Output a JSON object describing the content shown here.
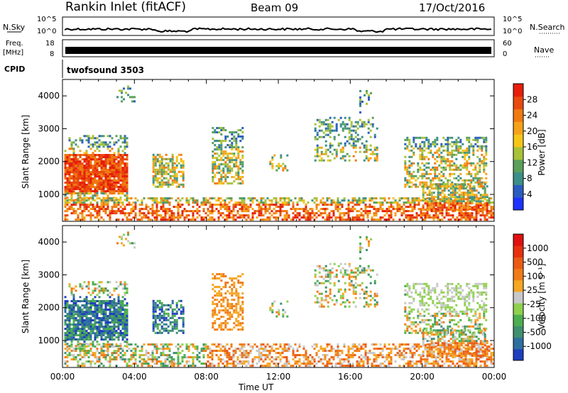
{
  "header": {
    "station": "Rankin Inlet (fitACF)",
    "beam": "Beam 09",
    "date": "17/Oct/2016"
  },
  "strip_panels": {
    "nsky": {
      "label": "N.Sky",
      "left_ticks": [
        "10^5",
        "10^0"
      ],
      "right_ticks": [
        "10^5",
        "10^0"
      ],
      "right_label": "N.Search"
    },
    "freq": {
      "label_line1": "Freq.",
      "label_line2": "[MHz]",
      "left_ticks": [
        "18",
        "8"
      ],
      "right_ticks": [
        "60",
        "0"
      ],
      "right_label": "Nave"
    },
    "cpid": {
      "label": "CPID",
      "value": "twofsound 3503"
    }
  },
  "chart_data": [
    {
      "type": "heatmap",
      "name": "power",
      "ylabel": "Slant Range [km]",
      "xlabel": "",
      "x_ticks": [
        "00:00",
        "04:00",
        "08:00",
        "12:00",
        "16:00",
        "20:00",
        "00:00"
      ],
      "xlim": [
        0,
        24
      ],
      "y_ticks": [
        1000,
        2000,
        3000,
        4000
      ],
      "ylim": [
        180,
        4500
      ],
      "colorbar": {
        "label": "Power [dB]",
        "ticks": [
          "4",
          "8",
          "12",
          "16",
          "20",
          "24",
          "28"
        ],
        "colors": [
          "#1e32ff",
          "#2a5dbf",
          "#3c8f88",
          "#5aa05a",
          "#a8c23a",
          "#f5c518",
          "#f5a21a",
          "#f07a10",
          "#e84a10",
          "#e61e0a"
        ]
      }
    },
    {
      "type": "heatmap",
      "name": "velocity",
      "ylabel": "Slant Range [km]",
      "xlabel": "Time UT",
      "x_ticks": [
        "00:00",
        "04:00",
        "08:00",
        "12:00",
        "16:00",
        "20:00",
        "00:00"
      ],
      "xlim": [
        0,
        24
      ],
      "y_ticks": [
        1000,
        2000,
        3000,
        4000
      ],
      "ylim": [
        180,
        4500
      ],
      "colorbar": {
        "label": "Velocity [m s⁻¹]",
        "ticks": [
          "1000",
          "500",
          "100",
          "25",
          "-25",
          "-100",
          "-500",
          "-1000"
        ],
        "colors": [
          "#1f3fbf",
          "#2f6fa0",
          "#3f8f70",
          "#4caf50",
          "#8fd14f",
          "#c8c8c8",
          "#f5a623",
          "#f07b18",
          "#eb5a14",
          "#e8300e",
          "#e01010"
        ]
      }
    }
  ]
}
